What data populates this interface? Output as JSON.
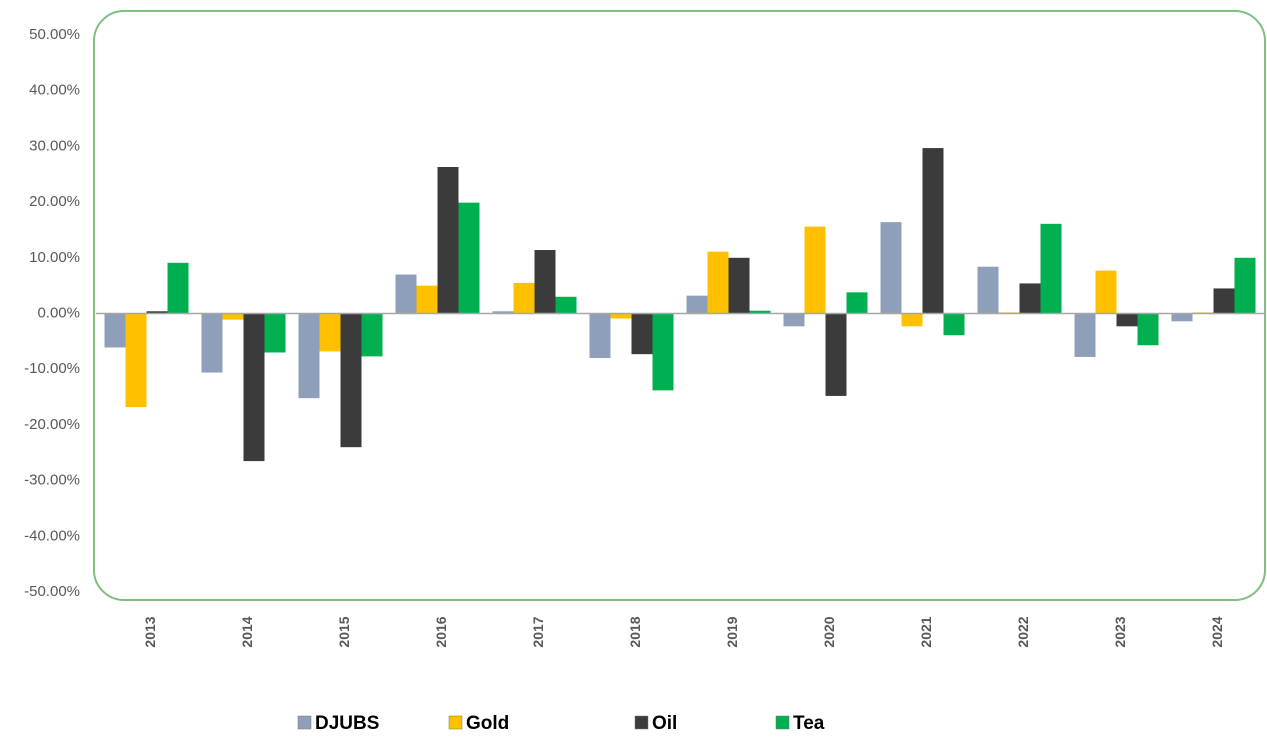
{
  "chart_data": {
    "type": "bar",
    "categories": [
      "2013",
      "2014",
      "2015",
      "2016",
      "2017",
      "2018",
      "2019",
      "2020",
      "2021",
      "2022",
      "2023",
      "2024"
    ],
    "series": [
      {
        "name": "DJUBS",
        "color": "#8ea0b9",
        "values": [
          -6.1,
          -10.6,
          -15.2,
          7.0,
          0.4,
          -8.0,
          3.2,
          -2.3,
          16.4,
          8.4,
          -7.8,
          -1.4
        ]
      },
      {
        "name": "Gold",
        "color": "#ffc000",
        "values": [
          -16.8,
          -1.1,
          -6.8,
          5.0,
          5.5,
          -0.9,
          11.1,
          15.6,
          -2.3,
          0.2,
          7.7,
          0.2
        ]
      },
      {
        "name": "Oil",
        "color": "#3b3b3b",
        "values": [
          0.4,
          -26.5,
          -24.0,
          26.3,
          11.4,
          -7.3,
          10.0,
          -14.8,
          29.7,
          5.4,
          -2.3,
          4.5
        ]
      },
      {
        "name": "Tea",
        "color": "#00b050",
        "values": [
          9.1,
          -7.0,
          -7.7,
          19.9,
          3.0,
          -13.8,
          0.5,
          3.8,
          -3.9,
          16.1,
          -5.7,
          10.0
        ]
      }
    ],
    "ylim": [
      -50,
      50
    ],
    "yticks": [
      {
        "value": 50,
        "label": "50.00%"
      },
      {
        "value": 40,
        "label": "40.00%"
      },
      {
        "value": 30,
        "label": "30.00%"
      },
      {
        "value": 20,
        "label": "20.00%"
      },
      {
        "value": 10,
        "label": "10.00%"
      },
      {
        "value": 0,
        "label": "0.00%"
      },
      {
        "value": -10,
        "label": "-10.00%"
      },
      {
        "value": -20,
        "label": "-20.00%"
      },
      {
        "value": -30,
        "label": "-30.00%"
      },
      {
        "value": -40,
        "label": "-40.00%"
      },
      {
        "value": -50,
        "label": "-50.00%"
      }
    ],
    "legend": "bottom"
  }
}
